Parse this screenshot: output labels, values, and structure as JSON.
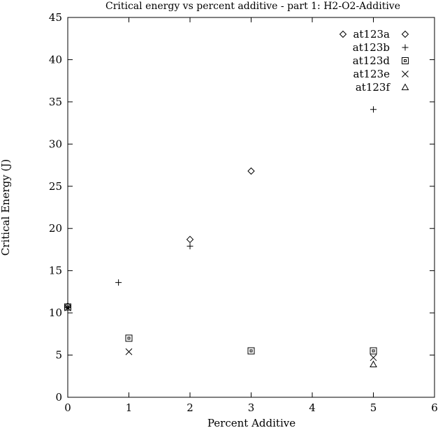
{
  "chart_data": {
    "type": "scatter",
    "title": "Critical energy vs percent additive - part 1: H2-O2-Additive",
    "xlabel": "Percent Additive",
    "ylabel": "Critical Energy (J)",
    "xlim": [
      0,
      6
    ],
    "ylim": [
      0,
      45
    ],
    "xticks": [
      0,
      1,
      2,
      3,
      4,
      5,
      6
    ],
    "yticks": [
      0,
      5,
      10,
      15,
      20,
      25,
      30,
      35,
      40,
      45
    ],
    "grid": false,
    "legend_position": "top-right",
    "series": [
      {
        "name": "at123a",
        "marker": "diamond",
        "points": [
          [
            0,
            10.8
          ],
          [
            2.0,
            18.7
          ],
          [
            3.0,
            26.8
          ]
        ]
      },
      {
        "name": "at123b",
        "marker": "plus",
        "points": [
          [
            0,
            10.6
          ],
          [
            0.83,
            13.6
          ],
          [
            2.0,
            17.9
          ],
          [
            5.0,
            34.1
          ]
        ]
      },
      {
        "name": "at123d",
        "marker": "square",
        "points": [
          [
            0,
            10.7
          ],
          [
            1.0,
            7.0
          ],
          [
            3.0,
            5.5
          ],
          [
            5.0,
            5.5
          ]
        ]
      },
      {
        "name": "at123e",
        "marker": "cross",
        "points": [
          [
            0,
            10.6
          ],
          [
            1.0,
            5.4
          ],
          [
            5.0,
            4.7
          ]
        ]
      },
      {
        "name": "at123f",
        "marker": "triangle",
        "points": [
          [
            5.0,
            3.9
          ]
        ]
      }
    ]
  }
}
